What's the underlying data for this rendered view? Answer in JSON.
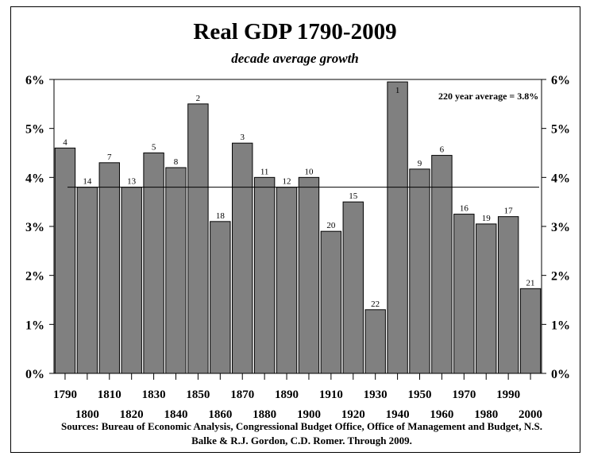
{
  "chart_data": {
    "type": "bar",
    "title": "Real GDP 1790-2009",
    "subtitle": "decade average growth",
    "categories": [
      "1790",
      "1800",
      "1810",
      "1820",
      "1830",
      "1840",
      "1850",
      "1860",
      "1870",
      "1880",
      "1890",
      "1900",
      "1910",
      "1920",
      "1930",
      "1940",
      "1950",
      "1960",
      "1970",
      "1980",
      "1990",
      "2000"
    ],
    "values": [
      4.6,
      3.8,
      4.3,
      3.8,
      4.5,
      4.2,
      5.5,
      3.1,
      4.7,
      4.0,
      3.8,
      4.0,
      2.9,
      3.5,
      1.3,
      5.95,
      4.17,
      4.45,
      3.25,
      3.05,
      3.2,
      1.73
    ],
    "ranks": [
      "4",
      "14",
      "7",
      "13",
      "5",
      "8",
      "2",
      "18",
      "3",
      "11",
      "12",
      "10",
      "20",
      "15",
      "22",
      "1",
      "9",
      "6",
      "16",
      "19",
      "17",
      "21"
    ],
    "average": 3.8,
    "average_label": "220 year average = 3.8%",
    "ylim": [
      0,
      6
    ],
    "yticks": [
      "0%",
      "1%",
      "2%",
      "3%",
      "4%",
      "5%",
      "6%"
    ],
    "xlabel": "",
    "ylabel": "",
    "bar_color": "#808080",
    "sources": "Sources: Bureau of Economic Analysis, Congressional Budget Office, Office of Management and Budget,  N.S. Balke & R.J. Gordon, C.D. Romer. Through 2009."
  }
}
